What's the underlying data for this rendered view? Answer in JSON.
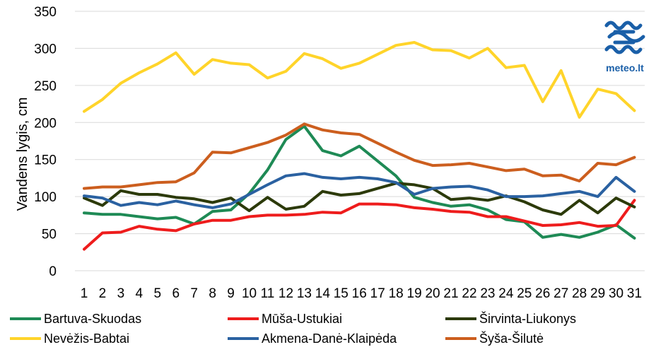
{
  "chart_data": {
    "type": "line",
    "ylabel": "Vandens lygis, cm",
    "xlabel": "",
    "ylim": [
      0,
      350
    ],
    "yticks": [
      0,
      50,
      100,
      150,
      200,
      250,
      300,
      350
    ],
    "grid": "horizontal",
    "legend": "bottom",
    "x": [
      "1",
      "2",
      "3",
      "4",
      "5",
      "6",
      "7",
      "8",
      "9",
      "10",
      "11",
      "12",
      "13",
      "14",
      "15",
      "16",
      "17",
      "18",
      "19",
      "20",
      "21",
      "22",
      "23",
      "24",
      "25",
      "26",
      "27",
      "28",
      "29",
      "30",
      "31"
    ],
    "series": [
      {
        "name": "Bartuva-Skuodas",
        "color": "#1e8a55",
        "values": [
          78,
          76,
          76,
          73,
          70,
          72,
          63,
          80,
          82,
          104,
          136,
          177,
          195,
          162,
          155,
          168,
          148,
          128,
          99,
          92,
          87,
          89,
          82,
          69,
          66,
          45,
          49,
          45,
          52,
          62,
          44
        ]
      },
      {
        "name": "Mūša-Ustukiai",
        "color": "#ee1c1c",
        "values": [
          29,
          51,
          52,
          60,
          56,
          54,
          63,
          68,
          68,
          73,
          75,
          75,
          76,
          79,
          78,
          90,
          90,
          89,
          85,
          83,
          80,
          79,
          73,
          73,
          67,
          61,
          62,
          65,
          60,
          61,
          95
        ]
      },
      {
        "name": "Širvinta-Liukonys",
        "color": "#2c3a0a",
        "values": [
          98,
          88,
          108,
          103,
          103,
          99,
          97,
          92,
          98,
          81,
          99,
          83,
          87,
          107,
          102,
          104,
          111,
          118,
          116,
          111,
          96,
          98,
          95,
          101,
          93,
          82,
          76,
          95,
          78,
          98,
          86
        ]
      },
      {
        "name": "Nevėžis-Babtai",
        "color": "#ffd42a",
        "values": [
          215,
          231,
          253,
          267,
          279,
          294,
          265,
          285,
          280,
          278,
          260,
          269,
          293,
          286,
          273,
          280,
          292,
          304,
          308,
          298,
          297,
          287,
          300,
          274,
          277,
          228,
          270,
          207,
          245,
          239,
          216
        ]
      },
      {
        "name": "Akmena-Danė-Klaipėda",
        "color": "#2a61a1",
        "values": [
          101,
          98,
          88,
          92,
          89,
          94,
          89,
          85,
          90,
          103,
          116,
          128,
          131,
          126,
          124,
          126,
          124,
          119,
          103,
          111,
          113,
          114,
          109,
          100,
          100,
          101,
          104,
          107,
          100,
          126,
          107
        ]
      },
      {
        "name": "Šyša-Šilutė",
        "color": "#cc5e1e",
        "values": [
          111,
          113,
          113,
          116,
          119,
          120,
          132,
          160,
          159,
          166,
          173,
          183,
          198,
          190,
          186,
          184,
          172,
          160,
          149,
          142,
          143,
          145,
          140,
          135,
          137,
          128,
          129,
          121,
          145,
          143,
          153
        ]
      }
    ]
  },
  "logo": {
    "text": "meteo.lt",
    "icon": "meteo-logo-icon",
    "color": "#1a5fa8"
  }
}
